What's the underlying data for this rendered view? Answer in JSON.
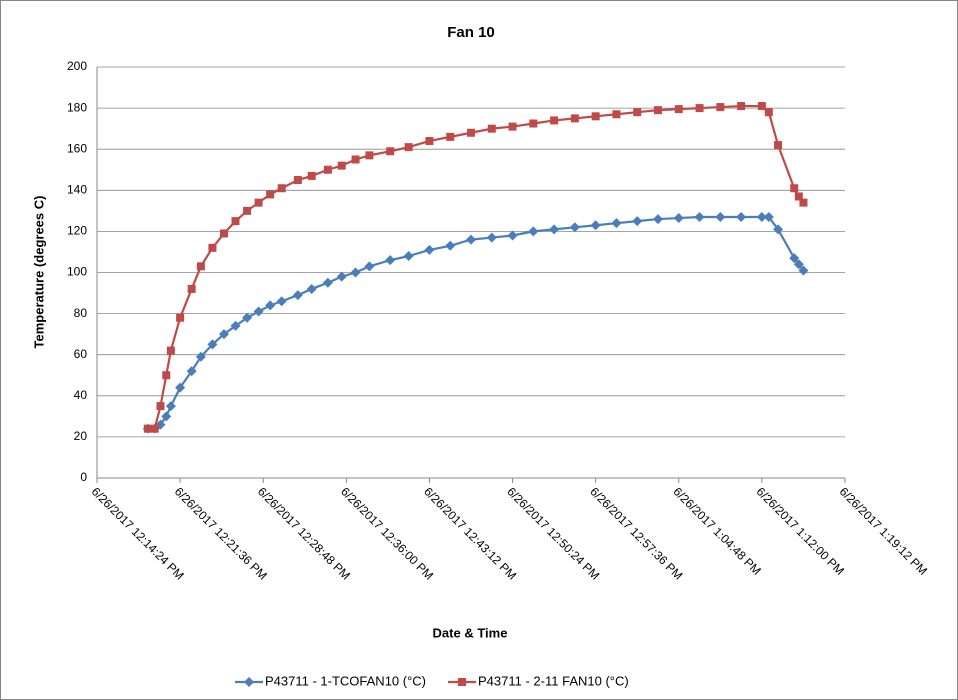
{
  "chart_data": {
    "type": "line",
    "title": "Fan 10",
    "x_label": "Date & Time",
    "y_label": "Temperature (degrees C)",
    "x": [
      "6/26/2017 12:18:48 PM",
      "6/26/2017 12:19:24 PM",
      "6/26/2017 12:19:54 PM",
      "6/26/2017 12:20:24 PM",
      "6/26/2017 12:20:48 PM",
      "6/26/2017 12:21:36 PM",
      "6/26/2017 12:22:36 PM",
      "6/26/2017 12:23:24 PM",
      "6/26/2017 12:24:24 PM",
      "6/26/2017 12:25:24 PM",
      "6/26/2017 12:26:24 PM",
      "6/26/2017 12:27:24 PM",
      "6/26/2017 12:28:24 PM",
      "6/26/2017 12:29:24 PM",
      "6/26/2017 12:30:24 PM",
      "6/26/2017 12:31:48 PM",
      "6/26/2017 12:33:00 PM",
      "6/26/2017 12:34:24 PM",
      "6/26/2017 12:35:36 PM",
      "6/26/2017 12:36:48 PM",
      "6/26/2017 12:38:00 PM",
      "6/26/2017 12:39:48 PM",
      "6/26/2017 12:41:24 PM",
      "6/26/2017 12:43:12 PM",
      "6/26/2017 12:45:00 PM",
      "6/26/2017 12:46:48 PM",
      "6/26/2017 12:48:36 PM",
      "6/26/2017 12:50:24 PM",
      "6/26/2017 12:52:12 PM",
      "6/26/2017 12:54:00 PM",
      "6/26/2017 12:55:48 PM",
      "6/26/2017 12:57:36 PM",
      "6/26/2017 12:59:24 PM",
      "6/26/2017 1:01:12 PM",
      "6/26/2017 1:03:00 PM",
      "6/26/2017 1:04:48 PM",
      "6/26/2017 1:06:36 PM",
      "6/26/2017 1:08:24 PM",
      "6/26/2017 1:10:12 PM",
      "6/26/2017 1:12:00 PM",
      "6/26/2017 1:12:36 PM",
      "6/26/2017 1:13:24 PM",
      "6/26/2017 1:14:48 PM",
      "6/26/2017 1:15:12 PM",
      "6/26/2017 1:15:36 PM"
    ],
    "series": [
      {
        "name": "P43711 - 1-TCOFAN10 (°C)",
        "color": "#4a7ebb",
        "marker": "diamond",
        "values": [
          24,
          24,
          26,
          30,
          35,
          44,
          52,
          59,
          65,
          70,
          74,
          78,
          81,
          84,
          86,
          89,
          92,
          95,
          98,
          100,
          103,
          106,
          108,
          111,
          113,
          116,
          117,
          118,
          120,
          121,
          122,
          123,
          124,
          125,
          126,
          126.5,
          127,
          127,
          127,
          127,
          127,
          121,
          107,
          104,
          101
        ]
      },
      {
        "name": "P43711 - 2-11 FAN10 (°C)",
        "color": "#be4b48",
        "marker": "square",
        "values": [
          24,
          24,
          35,
          50,
          62,
          78,
          92,
          103,
          112,
          119,
          125,
          130,
          134,
          138,
          141,
          145,
          147,
          150,
          152,
          155,
          157,
          159,
          161,
          164,
          166,
          168,
          170,
          171,
          172.5,
          174,
          175,
          176,
          177,
          178,
          179,
          179.5,
          180,
          180.5,
          181,
          181,
          178,
          162,
          141,
          137,
          134
        ]
      }
    ],
    "xlim": [
      "6/26/2017 12:14:24 PM",
      "6/26/2017 1:19:12 PM"
    ],
    "xticks": [
      "6/26/2017 12:14:24 PM",
      "6/26/2017 12:21:36 PM",
      "6/26/2017 12:28:48 PM",
      "6/26/2017 12:36:00 PM",
      "6/26/2017 12:43:12 PM",
      "6/26/2017 12:50:24 PM",
      "6/26/2017 12:57:36 PM",
      "6/26/2017 1:04:48 PM",
      "6/26/2017 1:12:00 PM",
      "6/26/2017 1:19:12 PM"
    ],
    "ylim": [
      0,
      200
    ],
    "yticks": [
      0,
      20,
      40,
      60,
      80,
      100,
      120,
      140,
      160,
      180,
      200
    ],
    "grid": true,
    "legend": "bottom"
  }
}
